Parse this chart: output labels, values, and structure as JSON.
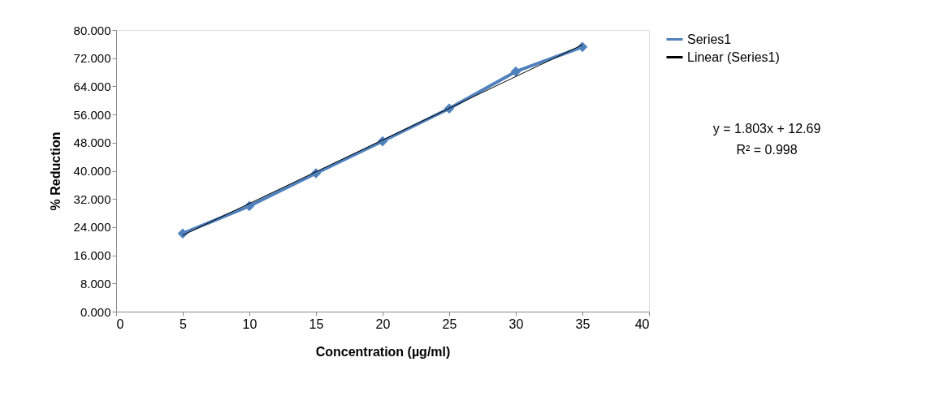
{
  "chart_data": {
    "type": "line",
    "xlabel": "Concentration (µg/ml)",
    "ylabel": "% Reduction",
    "x": [
      5,
      10,
      15,
      20,
      25,
      30,
      35
    ],
    "series": [
      {
        "name": "Series1",
        "color": "#4f81bd",
        "values": [
          22.2,
          30.0,
          39.3,
          48.4,
          57.7,
          68.2,
          75.2
        ],
        "marker": "diamond"
      },
      {
        "name": "Linear (Series1)",
        "color": "#000000",
        "type": "line",
        "x": [
          5,
          35
        ],
        "values": [
          21.7,
          75.8
        ],
        "marker": "none"
      }
    ],
    "xlim": [
      0,
      40
    ],
    "xticks": [
      0,
      5,
      10,
      15,
      20,
      25,
      30,
      35,
      40
    ],
    "ylim": [
      0,
      80
    ],
    "yticks": [
      {
        "value": 0,
        "label": "0.000"
      },
      {
        "value": 8,
        "label": "8.000"
      },
      {
        "value": 16,
        "label": "16.000"
      },
      {
        "value": 24,
        "label": "24.000"
      },
      {
        "value": 32,
        "label": "32.000"
      },
      {
        "value": 40,
        "label": "40.000"
      },
      {
        "value": 48,
        "label": "48.000"
      },
      {
        "value": 56,
        "label": "56.000"
      },
      {
        "value": 64,
        "label": "64.000"
      },
      {
        "value": 72,
        "label": "72.000"
      },
      {
        "value": 80,
        "label": "80.000"
      }
    ],
    "annotations": [
      "y = 1.803x + 12.69",
      "R² = 0.998"
    ],
    "grid": false,
    "legend": "right",
    "line_style": "solid"
  }
}
